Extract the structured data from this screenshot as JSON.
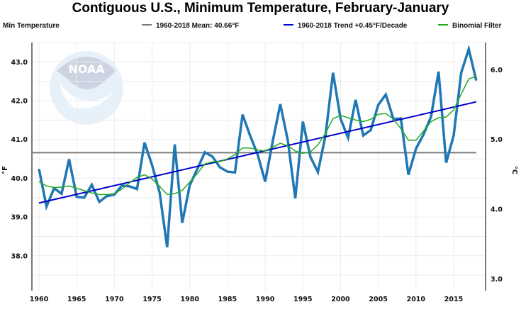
{
  "chart_data": {
    "type": "line",
    "title": "Contiguous U.S., Minimum Temperature, February-January",
    "xlabel": "",
    "ylabel": "°F",
    "ylabel_right": "°C",
    "xlim": [
      1960,
      2018
    ],
    "ylim": [
      37.1,
      43.5
    ],
    "ylim_right_celsius": [
      2.83,
      6.39
    ],
    "x_ticks": [
      1960,
      1965,
      1970,
      1975,
      1980,
      1985,
      1990,
      1995,
      2000,
      2005,
      2010,
      2015
    ],
    "y_ticks": [
      "38.0",
      "39.0",
      "40.0",
      "41.0",
      "42.0",
      "43.0"
    ],
    "y_tick_values": [
      38,
      39,
      40,
      41,
      42,
      43
    ],
    "y_ticks_right": [
      "3.0",
      "4.0",
      "5.0",
      "6.0"
    ],
    "y_tick_values_right": [
      3,
      4,
      5,
      6
    ],
    "grid": true,
    "legend_position": "top",
    "legend": [
      {
        "label": "Min Temperature",
        "color": ""
      },
      {
        "label": "1960-2018 Mean: 40.66°F",
        "color": "#7a7a7a"
      },
      {
        "label": "1960-2018 Trend +0.45°F/Decade",
        "color": "#0000cc"
      },
      {
        "label": "Binomial Filter",
        "color": "#22aa22"
      }
    ],
    "x": [
      1960,
      1961,
      1962,
      1963,
      1964,
      1965,
      1966,
      1967,
      1968,
      1969,
      1970,
      1971,
      1972,
      1973,
      1974,
      1975,
      1976,
      1977,
      1978,
      1979,
      1980,
      1981,
      1982,
      1983,
      1984,
      1985,
      1986,
      1987,
      1988,
      1989,
      1990,
      1991,
      1992,
      1993,
      1994,
      1995,
      1996,
      1997,
      1998,
      1999,
      2000,
      2001,
      2002,
      2003,
      2004,
      2005,
      2006,
      2007,
      2008,
      2009,
      2010,
      2011,
      2012,
      2013,
      2014,
      2015,
      2016,
      2017,
      2018
    ],
    "series": [
      {
        "name": "Min Temperature",
        "color": "#1f77b4",
        "values": [
          40.24,
          39.27,
          39.74,
          39.6,
          40.49,
          39.52,
          39.5,
          39.83,
          39.39,
          39.54,
          39.58,
          39.81,
          39.79,
          39.72,
          40.92,
          40.34,
          39.63,
          38.22,
          40.87,
          38.85,
          39.82,
          40.24,
          40.67,
          40.56,
          40.28,
          40.17,
          40.15,
          41.64,
          41.1,
          40.61,
          39.91,
          40.95,
          41.91,
          40.98,
          39.48,
          41.46,
          40.55,
          40.16,
          41.1,
          42.72,
          41.53,
          41.04,
          42.02,
          41.1,
          41.24,
          41.89,
          42.16,
          41.53,
          41.54,
          40.09,
          40.76,
          41.13,
          41.59,
          42.75,
          40.4,
          41.1,
          42.72,
          43.33,
          42.52
        ]
      },
      {
        "name": "Binomial Filter",
        "color": "#22aa22",
        "values": [
          39.91,
          39.8,
          39.76,
          39.77,
          39.8,
          39.74,
          39.68,
          39.62,
          39.58,
          39.58,
          39.6,
          39.72,
          39.88,
          40.02,
          40.09,
          39.98,
          39.79,
          39.58,
          39.6,
          39.69,
          39.9,
          40.12,
          40.37,
          40.42,
          40.43,
          40.5,
          40.61,
          40.78,
          40.78,
          40.73,
          40.7,
          40.8,
          40.9,
          40.84,
          40.7,
          40.64,
          40.68,
          40.86,
          41.16,
          41.54,
          41.62,
          41.56,
          41.5,
          41.46,
          41.52,
          41.65,
          41.67,
          41.53,
          41.28,
          40.98,
          40.98,
          41.22,
          41.46,
          41.56,
          41.58,
          41.76,
          42.17,
          42.56,
          42.63
        ]
      },
      {
        "name": "1960-2018 Mean",
        "color": "#7a7a7a",
        "values_constant": 40.66
      },
      {
        "name": "1960-2018 Trend",
        "color": "#0000cc",
        "trend_per_decade": 0.45,
        "endpoints": [
          [
            1960,
            39.36
          ],
          [
            2018,
            41.97
          ]
        ]
      }
    ]
  }
}
